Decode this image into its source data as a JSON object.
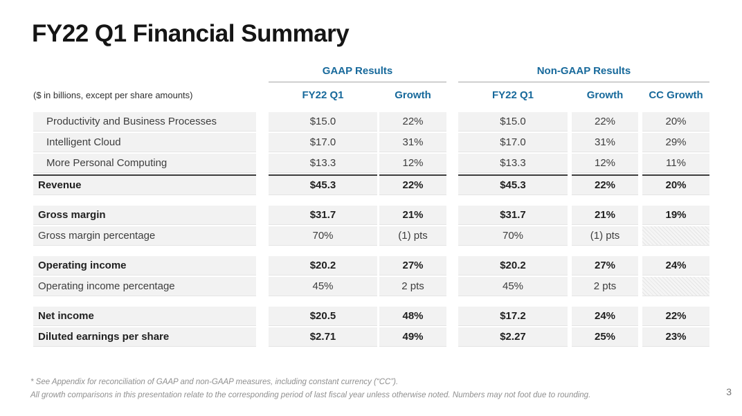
{
  "slide": {
    "title": "FY22 Q1 Financial Summary",
    "units_note": "($ in billions, except per share amounts)",
    "page_number": "3",
    "footnote_line1": "* See Appendix for reconciliation of GAAP and non-GAAP measures, including constant currency (“CC”).",
    "footnote_line2": "All growth comparisons in this presentation relate to the corresponding period of last fiscal year unless otherwise noted. Numbers may not foot due to rounding."
  },
  "colors": {
    "accent_blue": "#17699b",
    "row_bg": "#f2f2f2",
    "dark_rule": "#3b3b3b",
    "header_underline": "#a6a6a6"
  },
  "table": {
    "groups": [
      {
        "label": "GAAP Results"
      },
      {
        "label": "Non-GAAP Results"
      }
    ],
    "columns": {
      "gaap": [
        "FY22 Q1",
        "Growth"
      ],
      "non_gaap": [
        "FY22 Q1",
        "Growth",
        "CC Growth"
      ]
    },
    "rows": [
      {
        "label": "Productivity and Business Processes",
        "gaap": [
          "$15.0",
          "22%"
        ],
        "non_gaap": [
          "$15.0",
          "22%",
          "20%"
        ]
      },
      {
        "label": "Intelligent Cloud",
        "gaap": [
          "$17.0",
          "31%"
        ],
        "non_gaap": [
          "$17.0",
          "31%",
          "29%"
        ]
      },
      {
        "label": "More Personal Computing",
        "gaap": [
          "$13.3",
          "12%"
        ],
        "non_gaap": [
          "$13.3",
          "12%",
          "11%"
        ]
      },
      {
        "label": "Revenue",
        "gaap": [
          "$45.3",
          "22%"
        ],
        "non_gaap": [
          "$45.3",
          "22%",
          "20%"
        ]
      },
      {
        "label": "Gross margin",
        "gaap": [
          "$31.7",
          "21%"
        ],
        "non_gaap": [
          "$31.7",
          "21%",
          "19%"
        ]
      },
      {
        "label": "Gross margin percentage",
        "gaap": [
          "70%",
          "(1) pts"
        ],
        "non_gaap": [
          "70%",
          "(1) pts",
          null
        ]
      },
      {
        "label": "Operating income",
        "gaap": [
          "$20.2",
          "27%"
        ],
        "non_gaap": [
          "$20.2",
          "27%",
          "24%"
        ]
      },
      {
        "label": "Operating income percentage",
        "gaap": [
          "45%",
          "2 pts"
        ],
        "non_gaap": [
          "45%",
          "2 pts",
          null
        ]
      },
      {
        "label": "Net income",
        "gaap": [
          "$20.5",
          "48%"
        ],
        "non_gaap": [
          "$17.2",
          "24%",
          "22%"
        ]
      },
      {
        "label": "Diluted earnings per share",
        "gaap": [
          "$2.71",
          "49%"
        ],
        "non_gaap": [
          "$2.27",
          "25%",
          "23%"
        ]
      }
    ]
  }
}
